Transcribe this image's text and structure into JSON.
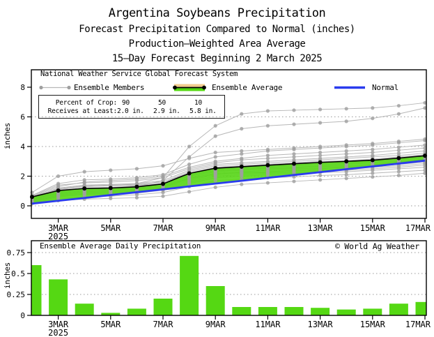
{
  "header": {
    "title": "Argentina Soybeans Precipitation",
    "subtitle1": "Forecast Precipitation Compared to Normal (inches)",
    "subtitle2": "Production–Weighted Area Average",
    "subtitle3": "15–Day Forecast Beginning 2 March 2025"
  },
  "colors": {
    "green": "#55d813",
    "blue": "#2a3bee",
    "tan": "#f2cc8f",
    "member_line": "#b7b7b7",
    "member_dot": "#9f9f9f",
    "average": "#000000",
    "grid": "#999999",
    "frame": "#000000"
  },
  "chart_data": [
    {
      "type": "line",
      "name": "forecast_cumulative_precipitation",
      "legend": {
        "header": "National Weather Service Global Forecast System",
        "members_label": "Ensemble Members",
        "average_label": "Ensemble Average",
        "normal_label": "Normal"
      },
      "stats_box": {
        "row1_label": "Percent of Crop:",
        "row1_values": [
          "90",
          "50",
          "10"
        ],
        "row2_label": "Receives at Least:",
        "row2_values": [
          "2.0 in.",
          "2.9 in.",
          "5.8 in."
        ]
      },
      "ylabel": "inches",
      "ylim": [
        -0.85,
        9.2
      ],
      "yticks": [
        0,
        2,
        4,
        6,
        8
      ],
      "ytick_labels": [
        "0",
        "2",
        "4",
        "6",
        "8"
      ],
      "grid_yticks": [
        0,
        2,
        4,
        6
      ],
      "days": [
        2,
        3,
        4,
        5,
        6,
        7,
        8,
        9,
        10,
        11,
        12,
        13,
        14,
        15,
        16,
        17
      ],
      "xtick_days": [
        3,
        5,
        7,
        9,
        11,
        13,
        15,
        17
      ],
      "xtick_labels": [
        "3MAR",
        "5MAR",
        "7MAR",
        "9MAR",
        "11MAR",
        "13MAR",
        "15MAR",
        "17MAR"
      ],
      "xtick_year": "2025",
      "ensemble_average": [
        0.6,
        1.03,
        1.17,
        1.2,
        1.28,
        1.48,
        2.19,
        2.54,
        2.64,
        2.74,
        2.84,
        2.93,
        3.0,
        3.08,
        3.22,
        3.38
      ],
      "normal": [
        0.15,
        0.34,
        0.53,
        0.73,
        0.92,
        1.11,
        1.31,
        1.5,
        1.69,
        1.89,
        2.08,
        2.27,
        2.47,
        2.66,
        2.85,
        3.05
      ],
      "ensemble_members": [
        [
          0.5,
          1.1,
          1.3,
          1.35,
          1.5,
          1.9,
          4.0,
          5.4,
          6.2,
          6.4,
          6.45,
          6.5,
          6.55,
          6.6,
          6.75,
          6.95
        ],
        [
          0.4,
          0.9,
          1.1,
          1.2,
          1.3,
          1.7,
          3.3,
          4.7,
          5.2,
          5.4,
          5.5,
          5.6,
          5.7,
          5.9,
          6.2,
          6.6
        ],
        [
          0.9,
          2.0,
          2.3,
          2.4,
          2.5,
          2.7,
          3.2,
          3.6,
          3.7,
          3.8,
          3.9,
          4.0,
          4.1,
          4.2,
          4.35,
          4.5
        ],
        [
          0.7,
          1.5,
          1.75,
          1.8,
          1.9,
          2.1,
          2.8,
          3.3,
          3.5,
          3.7,
          3.8,
          3.9,
          4.0,
          4.1,
          4.25,
          4.4
        ],
        [
          0.6,
          1.3,
          1.6,
          1.7,
          1.8,
          2.0,
          2.6,
          3.0,
          3.2,
          3.4,
          3.5,
          3.6,
          3.7,
          3.8,
          3.95,
          4.1
        ],
        [
          0.65,
          1.4,
          1.55,
          1.6,
          1.7,
          1.9,
          2.5,
          2.9,
          3.1,
          3.2,
          3.3,
          3.4,
          3.5,
          3.6,
          3.75,
          3.9
        ],
        [
          0.55,
          1.2,
          1.4,
          1.45,
          1.5,
          1.7,
          2.4,
          2.8,
          2.9,
          3.0,
          3.1,
          3.2,
          3.3,
          3.4,
          3.55,
          3.7
        ],
        [
          0.5,
          1.1,
          1.3,
          1.35,
          1.4,
          1.6,
          2.3,
          2.7,
          2.8,
          2.9,
          3.0,
          3.1,
          3.2,
          3.3,
          3.4,
          3.55
        ],
        [
          0.6,
          1.15,
          1.35,
          1.4,
          1.45,
          1.6,
          2.2,
          2.6,
          2.7,
          2.8,
          2.9,
          3.0,
          3.05,
          3.15,
          3.3,
          3.45
        ],
        [
          0.45,
          1.0,
          1.2,
          1.25,
          1.3,
          1.5,
          2.15,
          2.5,
          2.6,
          2.7,
          2.8,
          2.9,
          2.95,
          3.05,
          3.2,
          3.35
        ],
        [
          0.5,
          1.05,
          1.2,
          1.25,
          1.35,
          1.5,
          2.1,
          2.45,
          2.55,
          2.65,
          2.75,
          2.85,
          2.9,
          3.0,
          3.15,
          3.3
        ],
        [
          0.4,
          0.95,
          1.1,
          1.15,
          1.2,
          1.4,
          2.05,
          2.4,
          2.5,
          2.6,
          2.7,
          2.8,
          2.85,
          2.95,
          3.1,
          3.25
        ],
        [
          0.45,
          0.9,
          1.05,
          1.1,
          1.2,
          1.4,
          2.0,
          2.35,
          2.45,
          2.55,
          2.6,
          2.7,
          2.8,
          2.9,
          3.0,
          3.15
        ],
        [
          0.35,
          0.85,
          1.0,
          1.05,
          1.15,
          1.35,
          1.9,
          2.3,
          2.4,
          2.5,
          2.55,
          2.65,
          2.7,
          2.8,
          2.95,
          3.1
        ],
        [
          0.4,
          0.8,
          0.95,
          1.0,
          1.1,
          1.3,
          1.85,
          2.2,
          2.3,
          2.4,
          2.5,
          2.55,
          2.65,
          2.75,
          2.9,
          3.0
        ],
        [
          0.3,
          0.75,
          0.9,
          0.95,
          1.05,
          1.25,
          1.8,
          2.15,
          2.25,
          2.3,
          2.4,
          2.5,
          2.6,
          2.65,
          2.8,
          2.95
        ],
        [
          0.35,
          0.7,
          0.85,
          0.9,
          1.0,
          1.2,
          1.7,
          2.1,
          2.2,
          2.25,
          2.35,
          2.4,
          2.5,
          2.6,
          2.7,
          2.85
        ],
        [
          0.3,
          0.65,
          0.8,
          0.85,
          0.95,
          1.1,
          1.6,
          2.0,
          2.1,
          2.2,
          2.25,
          2.35,
          2.4,
          2.5,
          2.6,
          2.75
        ],
        [
          0.25,
          0.6,
          0.75,
          0.8,
          0.85,
          1.05,
          1.5,
          1.9,
          2.0,
          2.1,
          2.2,
          2.25,
          2.3,
          2.4,
          2.5,
          2.6
        ],
        [
          0.2,
          0.5,
          0.6,
          0.65,
          0.75,
          0.9,
          1.3,
          1.7,
          1.8,
          1.9,
          1.95,
          2.05,
          2.1,
          2.2,
          2.3,
          2.4
        ],
        [
          0.15,
          0.35,
          0.45,
          0.5,
          0.55,
          0.65,
          0.95,
          1.25,
          1.45,
          1.55,
          1.65,
          1.75,
          1.85,
          1.95,
          2.05,
          2.2
        ]
      ]
    },
    {
      "type": "bar",
      "name": "ensemble_average_daily_precipitation",
      "title": "Ensemble Average Daily Precipitation",
      "watermark": "© World Ag Weather",
      "ylabel": "inches",
      "ylim": [
        0,
        0.9
      ],
      "yticks": [
        0,
        0.25,
        0.5,
        0.75
      ],
      "ytick_labels": [
        "0",
        "0.25",
        "0.5",
        "0.75"
      ],
      "grid_yticks": [
        0.25,
        0.5,
        0.75
      ],
      "days": [
        2,
        3,
        4,
        5,
        6,
        7,
        8,
        9,
        10,
        11,
        12,
        13,
        14,
        15,
        16,
        17
      ],
      "xtick_days": [
        3,
        5,
        7,
        9,
        11,
        13,
        15,
        17
      ],
      "xtick_labels": [
        "3MAR",
        "5MAR",
        "7MAR",
        "9MAR",
        "11MAR",
        "13MAR",
        "15MAR",
        "17MAR"
      ],
      "xtick_year": "2025",
      "values": [
        0.6,
        0.43,
        0.14,
        0.03,
        0.08,
        0.2,
        0.71,
        0.35,
        0.1,
        0.1,
        0.1,
        0.09,
        0.07,
        0.08,
        0.14,
        0.16
      ]
    }
  ]
}
